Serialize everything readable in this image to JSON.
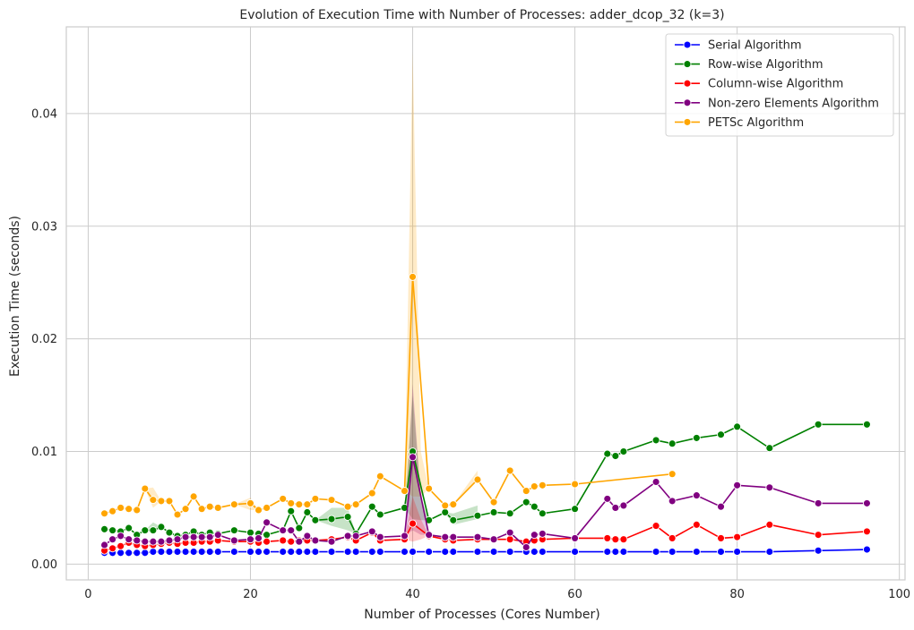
{
  "chart_data": {
    "type": "line",
    "title": "Evolution of Execution Time with Number of Processes: adder_dcop_32 (k=3)",
    "xlabel": "Number of Processes (Cores Number)",
    "ylabel": "Execution Time (seconds)",
    "xlim": [
      -2.7,
      100.7
    ],
    "ylim": [
      -0.0014,
      0.0477
    ],
    "xticks": [
      0,
      20,
      40,
      60,
      80,
      100
    ],
    "xtick_labels": [
      "0",
      "20",
      "40",
      "60",
      "80",
      "100"
    ],
    "yticks": [
      0.0,
      0.01,
      0.02,
      0.03,
      0.04
    ],
    "ytick_labels": [
      "0.00",
      "0.01",
      "0.02",
      "0.03",
      "0.04"
    ],
    "grid": true,
    "legend_position": "top-right",
    "series": [
      {
        "name": "Serial Algorithm",
        "color": "#0000ff",
        "x": [
          2,
          3,
          4,
          5,
          6,
          7,
          8,
          9,
          10,
          11,
          12,
          13,
          14,
          15,
          16,
          18,
          20,
          21,
          22,
          24,
          25,
          26,
          27,
          28,
          30,
          32,
          33,
          35,
          36,
          39,
          40,
          42,
          44,
          45,
          48,
          50,
          52,
          54,
          55,
          56,
          60,
          64,
          65,
          66,
          70,
          72,
          75,
          78,
          80,
          84,
          90,
          96
        ],
        "y": [
          0.001,
          0.001,
          0.001,
          0.001,
          0.001,
          0.001,
          0.0011,
          0.0011,
          0.0011,
          0.0011,
          0.0011,
          0.0011,
          0.0011,
          0.0011,
          0.0011,
          0.0011,
          0.0011,
          0.0011,
          0.0011,
          0.0011,
          0.0011,
          0.0011,
          0.0011,
          0.0011,
          0.0011,
          0.0011,
          0.0011,
          0.0011,
          0.0011,
          0.0011,
          0.0011,
          0.0011,
          0.0011,
          0.0011,
          0.0011,
          0.0011,
          0.0011,
          0.0011,
          0.0011,
          0.0011,
          0.0011,
          0.0011,
          0.0011,
          0.0011,
          0.0011,
          0.0011,
          0.0011,
          0.0011,
          0.0011,
          0.0011,
          0.0012,
          0.0013
        ]
      },
      {
        "name": "Row-wise Algorithm",
        "color": "#008000",
        "x": [
          2,
          3,
          4,
          5,
          6,
          7,
          8,
          9,
          10,
          11,
          12,
          13,
          14,
          15,
          16,
          18,
          20,
          21,
          22,
          24,
          25,
          26,
          27,
          28,
          30,
          32,
          33,
          35,
          36,
          39,
          40,
          42,
          44,
          45,
          48,
          50,
          52,
          54,
          55,
          56,
          60,
          64,
          65,
          66,
          70,
          72,
          75,
          78,
          80,
          84,
          90,
          96
        ],
        "y": [
          0.0031,
          0.003,
          0.0029,
          0.0032,
          0.0026,
          0.003,
          0.003,
          0.0033,
          0.0028,
          0.0025,
          0.0026,
          0.0029,
          0.0026,
          0.0028,
          0.0027,
          0.003,
          0.0028,
          0.0027,
          0.0026,
          0.003,
          0.0047,
          0.0032,
          0.0046,
          0.0039,
          0.004,
          0.0042,
          0.0027,
          0.0051,
          0.0044,
          0.005,
          0.01,
          0.0039,
          0.0046,
          0.0039,
          0.0043,
          0.0046,
          0.0045,
          0.0055,
          0.0051,
          0.0045,
          0.0049,
          0.0098,
          0.0096,
          0.01,
          0.011,
          0.0107,
          0.0112,
          0.0115,
          0.0122,
          0.0103,
          0.0124,
          0.0124
        ]
      },
      {
        "name": "Column-wise Algorithm",
        "color": "#ff0000",
        "x": [
          2,
          3,
          4,
          5,
          6,
          7,
          8,
          9,
          10,
          11,
          12,
          13,
          14,
          15,
          16,
          18,
          20,
          21,
          22,
          24,
          25,
          26,
          27,
          28,
          30,
          32,
          33,
          35,
          36,
          39,
          40,
          42,
          44,
          45,
          48,
          50,
          52,
          54,
          55,
          56,
          60,
          64,
          65,
          66,
          70,
          72,
          75,
          78,
          80,
          84,
          90,
          96
        ],
        "y": [
          0.0012,
          0.0014,
          0.0016,
          0.0019,
          0.0017,
          0.0016,
          0.0017,
          0.0018,
          0.0019,
          0.0018,
          0.0019,
          0.0019,
          0.002,
          0.002,
          0.0021,
          0.002,
          0.002,
          0.0019,
          0.002,
          0.0021,
          0.002,
          0.0021,
          0.0021,
          0.0021,
          0.0022,
          0.0024,
          0.0021,
          0.0028,
          0.0021,
          0.0022,
          0.0036,
          0.0025,
          0.0022,
          0.0021,
          0.0022,
          0.0022,
          0.0022,
          0.002,
          0.0021,
          0.0022,
          0.0023,
          0.0023,
          0.0022,
          0.0022,
          0.0034,
          0.0023,
          0.0035,
          0.0023,
          0.0024,
          0.0035,
          0.0026,
          0.0029
        ]
      },
      {
        "name": "Non-zero Elements Algorithm",
        "color": "#800080",
        "x": [
          2,
          3,
          4,
          5,
          6,
          7,
          8,
          9,
          10,
          11,
          12,
          13,
          14,
          15,
          16,
          18,
          20,
          21,
          22,
          24,
          25,
          26,
          27,
          28,
          30,
          32,
          33,
          35,
          36,
          39,
          40,
          42,
          44,
          45,
          48,
          50,
          52,
          54,
          55,
          56,
          60,
          64,
          65,
          66,
          70,
          72,
          75,
          78,
          80,
          84,
          90,
          96
        ],
        "y": [
          0.0017,
          0.0022,
          0.0025,
          0.0022,
          0.0021,
          0.002,
          0.002,
          0.002,
          0.0021,
          0.0022,
          0.0024,
          0.0024,
          0.0024,
          0.0024,
          0.0026,
          0.0021,
          0.0022,
          0.0023,
          0.0037,
          0.003,
          0.003,
          0.002,
          0.0025,
          0.0021,
          0.002,
          0.0025,
          0.0025,
          0.0029,
          0.0024,
          0.0025,
          0.0095,
          0.0026,
          0.0024,
          0.0024,
          0.0024,
          0.0022,
          0.0028,
          0.0015,
          0.0026,
          0.0027,
          0.0023,
          0.0058,
          0.005,
          0.0052,
          0.0073,
          0.0056,
          0.0061,
          0.0051,
          0.007,
          0.0068,
          0.0054,
          0.0054
        ]
      },
      {
        "name": "PETSc Algorithm",
        "color": "#ffa500",
        "x": [
          2,
          3,
          4,
          5,
          6,
          7,
          8,
          9,
          10,
          11,
          12,
          13,
          14,
          15,
          16,
          18,
          20,
          21,
          22,
          24,
          25,
          26,
          27,
          28,
          30,
          32,
          33,
          35,
          36,
          39,
          40,
          42,
          44,
          45,
          48,
          50,
          52,
          54,
          55,
          56,
          60,
          72
        ],
        "y": [
          0.0045,
          0.0047,
          0.005,
          0.0049,
          0.0048,
          0.0067,
          0.0057,
          0.0056,
          0.0056,
          0.0044,
          0.0049,
          0.006,
          0.0049,
          0.0051,
          0.005,
          0.0053,
          0.0054,
          0.0048,
          0.005,
          0.0058,
          0.0054,
          0.0053,
          0.0053,
          0.0058,
          0.0057,
          0.0051,
          0.0053,
          0.0063,
          0.0078,
          0.0065,
          0.0255,
          0.0067,
          0.0052,
          0.0053,
          0.0075,
          0.0055,
          0.0083,
          0.0065,
          0.0069,
          0.007,
          0.0071,
          0.008
        ]
      }
    ],
    "confidence_bands": [
      {
        "series": "PETSc Algorithm",
        "color": "#ffa500",
        "x": [
          38,
          39,
          40,
          41,
          42
        ],
        "lower": [
          0.0066,
          0.0065,
          0.006,
          0.006,
          0.0067
        ],
        "upper": [
          0.0066,
          0.0065,
          0.0455,
          0.01,
          0.0067
        ]
      },
      {
        "series": "Row-wise Algorithm",
        "color": "#008000",
        "x": [
          39,
          40,
          41,
          42
        ],
        "lower": [
          0.005,
          0.004,
          0.0039,
          0.0039
        ],
        "upper": [
          0.005,
          0.015,
          0.006,
          0.0039
        ]
      },
      {
        "series": "Non-zero Elements Algorithm",
        "color": "#800080",
        "x": [
          39,
          40,
          41,
          42
        ],
        "lower": [
          0.0025,
          0.003,
          0.0026,
          0.0026
        ],
        "upper": [
          0.0025,
          0.016,
          0.006,
          0.0026
        ]
      },
      {
        "series": "Column-wise Algorithm",
        "color": "#ff0000",
        "x": [
          39,
          40,
          41,
          42
        ],
        "lower": [
          0.0022,
          0.002,
          0.0022,
          0.0025
        ],
        "upper": [
          0.0022,
          0.006,
          0.004,
          0.0025
        ]
      },
      {
        "series": "PETSc Algorithm",
        "color": "#ffa500",
        "x": [
          7,
          8,
          9
        ],
        "lower": [
          0.0067,
          0.005,
          0.0056
        ],
        "upper": [
          0.0067,
          0.0068,
          0.0056
        ]
      },
      {
        "series": "PETSc Algorithm",
        "color": "#ffa500",
        "x": [
          18,
          20,
          21
        ],
        "lower": [
          0.0053,
          0.0048,
          0.0048
        ],
        "upper": [
          0.0053,
          0.0059,
          0.0048
        ]
      },
      {
        "series": "PETSc Algorithm",
        "color": "#ffa500",
        "x": [
          44,
          45,
          48
        ],
        "lower": [
          0.0052,
          0.0053,
          0.0075
        ],
        "upper": [
          0.0052,
          0.0053,
          0.0083
        ]
      },
      {
        "series": "Row-wise Algorithm",
        "color": "#008000",
        "x": [
          28,
          30,
          32,
          33
        ],
        "lower": [
          0.0039,
          0.0034,
          0.003,
          0.0027
        ],
        "upper": [
          0.0039,
          0.005,
          0.005,
          0.0027
        ]
      },
      {
        "series": "Row-wise Algorithm",
        "color": "#008000",
        "x": [
          44,
          45,
          48
        ],
        "lower": [
          0.0046,
          0.0035,
          0.004
        ],
        "upper": [
          0.0046,
          0.0045,
          0.0052
        ]
      },
      {
        "series": "Row-wise Algorithm",
        "color": "#008000",
        "x": [
          7,
          8,
          9
        ],
        "lower": [
          0.003,
          0.0028,
          0.0033
        ],
        "upper": [
          0.003,
          0.0037,
          0.0033
        ]
      }
    ]
  }
}
